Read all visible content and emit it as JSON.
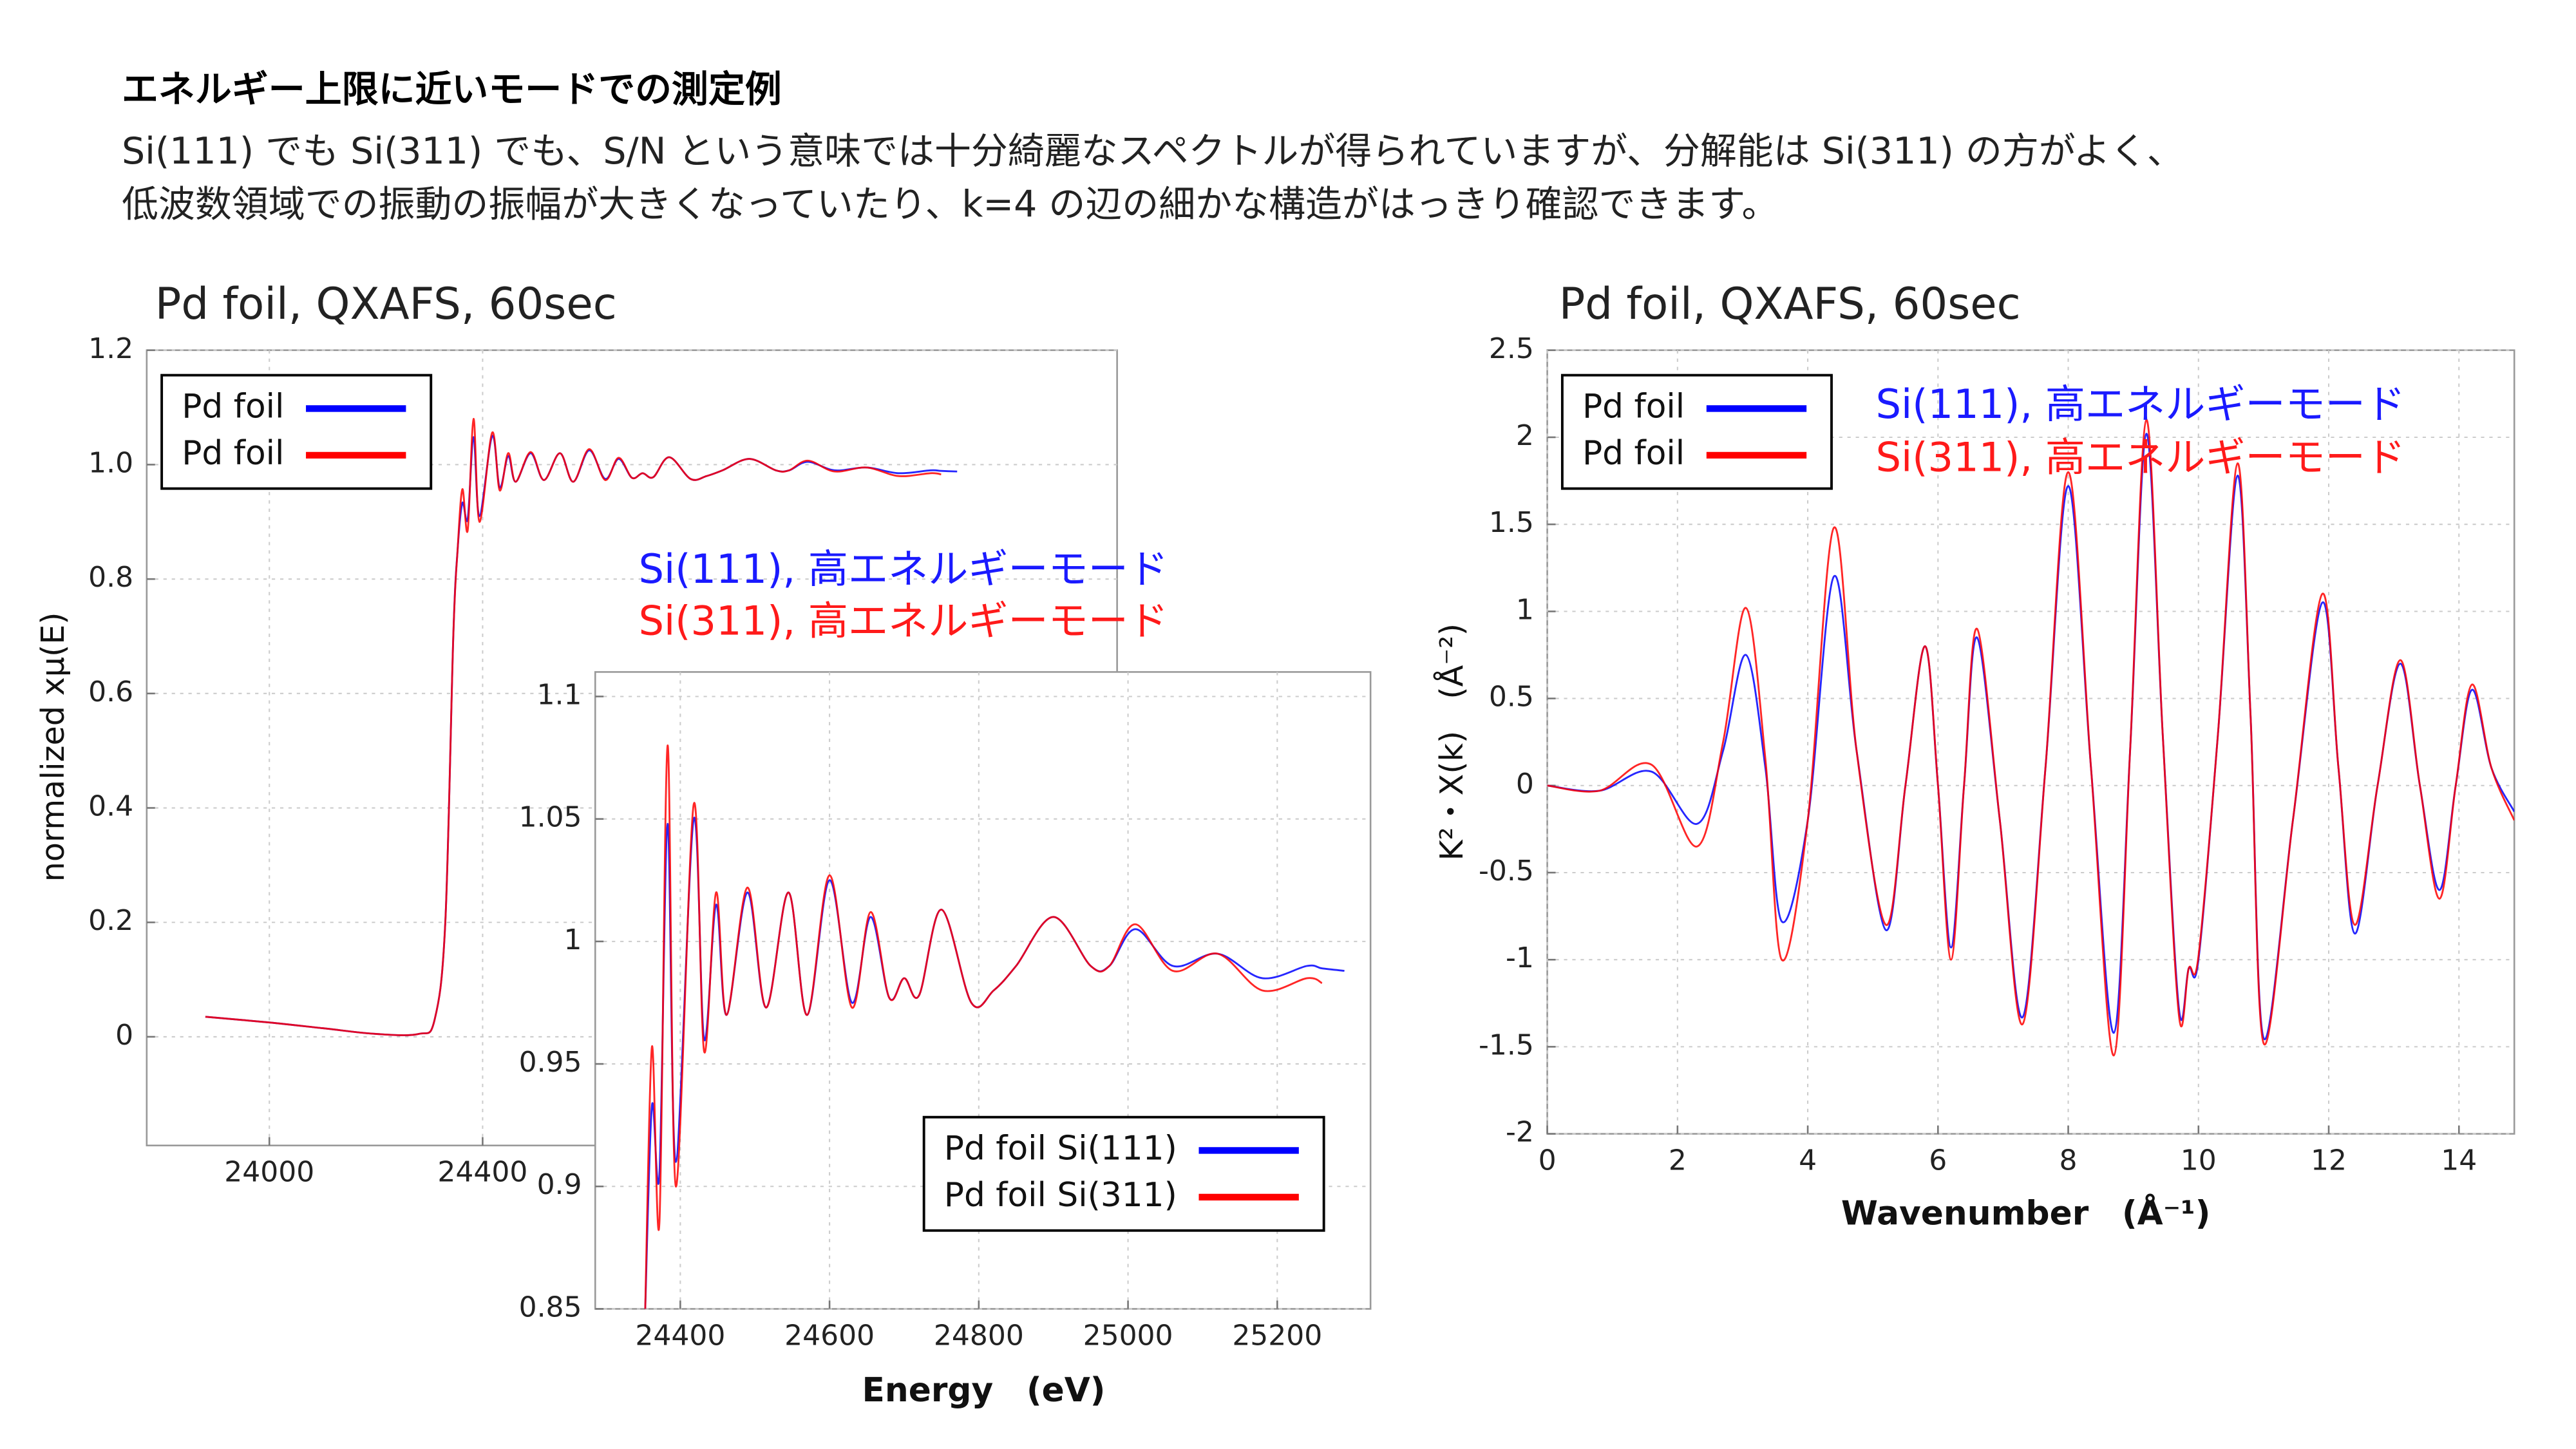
{
  "header": {
    "title": "エネルギー上限に近いモードでの測定例",
    "lines": [
      "Si(111) でも Si(311) でも、S/N という意味では十分綺麗なスペクトルが得られていますが、分解能は Si(311) の方がよく、",
      "低波数領域での振動の振幅が大きくなっていたり、k=4 の辺の細かな構造がはっきり確認できます。"
    ]
  },
  "chart_data": [
    {
      "type": "line",
      "title": "Pd foil, QXAFS, 60sec",
      "y_label": "normalized xμ(E)",
      "x": [
        23880,
        24000,
        24100,
        24200,
        24280,
        24310,
        24330,
        24345,
        24353,
        24362,
        24372,
        24383,
        24394,
        24418,
        24432,
        24448,
        24462,
        24490,
        24515,
        24545,
        24570,
        24600,
        24630,
        24655,
        24680,
        24700,
        24720,
        24750,
        24790,
        24820,
        24850,
        24900,
        24950,
        24975,
        25010,
        25060,
        25120,
        25180,
        25240,
        25260,
        25290
      ],
      "series": [
        {
          "name": "Pd foil",
          "color": "#0000ff",
          "values": [
            0.035,
            0.025,
            0.015,
            0.005,
            0.005,
            0.03,
            0.2,
            0.7,
            0.85,
            0.933,
            0.905,
            1.048,
            0.91,
            1.05,
            0.96,
            1.015,
            0.97,
            1.02,
            0.973,
            1.02,
            0.97,
            1.025,
            0.975,
            1.01,
            0.977,
            0.985,
            0.978,
            1.013,
            0.975,
            0.98,
            0.99,
            1.01,
            0.99,
            0.99,
            1.005,
            0.99,
            0.995,
            0.985,
            0.99,
            0.989,
            0.988
          ]
        },
        {
          "name": "Pd foil",
          "color": "#ff0000",
          "values": [
            0.035,
            0.025,
            0.015,
            0.005,
            0.005,
            0.03,
            0.2,
            0.7,
            0.85,
            0.957,
            0.885,
            1.08,
            0.9,
            1.056,
            0.955,
            1.02,
            0.97,
            1.022,
            0.973,
            1.02,
            0.97,
            1.027,
            0.973,
            1.012,
            0.977,
            0.985,
            0.978,
            1.013,
            0.975,
            0.98,
            0.99,
            1.01,
            0.99,
            0.99,
            1.007,
            0.988,
            0.995,
            0.98,
            0.985,
            0.983,
            null
          ]
        }
      ],
      "xlim": [
        23770,
        25590
      ],
      "xticks": [
        24000,
        24400
      ],
      "ylim": [
        -0.19,
        1.2
      ],
      "yticks": [
        0,
        0.2,
        0.4,
        0.6,
        0.8,
        {
          "value": 1,
          "label": "1.0"
        },
        1.2
      ],
      "grid": true,
      "legend": "upper left",
      "annotations": [
        {
          "text": "Si(111), 高エネルギーモード",
          "color": "#1a1aff"
        },
        {
          "text": "Si(311), 高エネルギーモード",
          "color": "#ff1a1a"
        }
      ]
    },
    {
      "type": "line",
      "x_label": "Energy　(eV)",
      "x": [
        24353,
        24362,
        24372,
        24383,
        24394,
        24418,
        24432,
        24448,
        24462,
        24490,
        24515,
        24545,
        24570,
        24600,
        24630,
        24655,
        24680,
        24700,
        24720,
        24750,
        24790,
        24820,
        24850,
        24900,
        24950,
        24975,
        25010,
        25060,
        25120,
        25180,
        25240,
        25260,
        25290
      ],
      "series": [
        {
          "name": "Pd foil Si(111)",
          "color": "#0000ff",
          "values": [
            0.85,
            0.933,
            0.905,
            1.048,
            0.91,
            1.05,
            0.96,
            1.015,
            0.97,
            1.02,
            0.973,
            1.02,
            0.97,
            1.025,
            0.975,
            1.01,
            0.977,
            0.985,
            0.978,
            1.013,
            0.975,
            0.98,
            0.99,
            1.01,
            0.99,
            0.99,
            1.005,
            0.99,
            0.995,
            0.985,
            0.99,
            0.989,
            0.988
          ]
        },
        {
          "name": "Pd foil Si(311)",
          "color": "#ff0000",
          "values": [
            0.85,
            0.957,
            0.885,
            1.08,
            0.9,
            1.056,
            0.955,
            1.02,
            0.97,
            1.022,
            0.973,
            1.02,
            0.97,
            1.027,
            0.973,
            1.012,
            0.977,
            0.985,
            0.978,
            1.013,
            0.975,
            0.98,
            0.99,
            1.01,
            0.99,
            0.99,
            1.007,
            0.988,
            0.995,
            0.98,
            0.985,
            0.983,
            null
          ]
        }
      ],
      "xlim": [
        24286,
        25325
      ],
      "xticks": [
        24400,
        24600,
        24800,
        25000,
        25200
      ],
      "ylim": [
        0.85,
        1.11
      ],
      "yticks": [
        0.85,
        0.9,
        0.95,
        1,
        1.05,
        1.1
      ],
      "grid": true,
      "legend": "lower right"
    },
    {
      "type": "line",
      "title": "Pd foil, QXAFS, 60sec",
      "x_label": "Wavenumber　(Å⁻¹)",
      "y_label": "K²・Χ(k)　(Å⁻²)",
      "x": [
        0,
        0.8,
        1.6,
        2.3,
        2.7,
        3.05,
        3.35,
        3.6,
        4.0,
        4.4,
        4.75,
        5.2,
        5.5,
        5.8,
        6.0,
        6.2,
        6.4,
        6.6,
        6.95,
        7.3,
        7.65,
        8.0,
        8.35,
        8.7,
        8.95,
        9.2,
        9.45,
        9.7,
        9.85,
        10.0,
        10.3,
        10.6,
        10.8,
        11.0,
        11.45,
        11.9,
        12.15,
        12.4,
        12.75,
        13.1,
        13.4,
        13.7,
        13.95,
        14.2,
        14.5,
        14.85
      ],
      "series": [
        {
          "name": "Pd foil",
          "color": "#0000ff",
          "values": [
            0,
            -0.03,
            0.08,
            -0.22,
            0.2,
            0.75,
            0.1,
            -0.78,
            -0.2,
            1.2,
            0.2,
            -0.83,
            0,
            0.8,
            0,
            -0.93,
            0,
            0.85,
            -0.2,
            -1.33,
            0.1,
            1.72,
            0.1,
            -1.42,
            0.2,
            2.02,
            0.3,
            -1.28,
            -1.05,
            -1.0,
            0.3,
            1.78,
            0.4,
            -1.45,
            -0.2,
            1.05,
            0.1,
            -0.85,
            0,
            0.7,
            0,
            -0.6,
            0,
            0.55,
            0.1,
            -0.15
          ]
        },
        {
          "name": "Pd foil",
          "color": "#ff0000",
          "values": [
            0,
            -0.03,
            0.12,
            -0.35,
            0.25,
            1.02,
            0.15,
            -1.0,
            -0.2,
            1.48,
            0.2,
            -0.8,
            0,
            0.8,
            0,
            -1.0,
            0,
            0.9,
            -0.2,
            -1.37,
            0.1,
            1.8,
            0.1,
            -1.55,
            0.2,
            2.1,
            0.3,
            -1.32,
            -1.05,
            -0.98,
            0.3,
            1.85,
            0.4,
            -1.48,
            -0.2,
            1.1,
            0.1,
            -0.8,
            0,
            0.72,
            0,
            -0.65,
            0,
            0.58,
            0.1,
            -0.2
          ]
        }
      ],
      "xlim": [
        0,
        14.85
      ],
      "xticks": [
        0,
        2,
        4,
        6,
        8,
        10,
        12,
        14
      ],
      "ylim": [
        -2,
        2.5
      ],
      "yticks": [
        2.5,
        2,
        1.5,
        1,
        0.5,
        0,
        -0.5,
        -1,
        -1.5,
        -2
      ],
      "grid": true,
      "legend": "upper left",
      "annotations": [
        {
          "text": "Si(111), 高エネルギーモード",
          "color": "#1a1aff"
        },
        {
          "text": "Si(311), 高エネルギーモード",
          "color": "#ff1a1a"
        }
      ]
    }
  ]
}
